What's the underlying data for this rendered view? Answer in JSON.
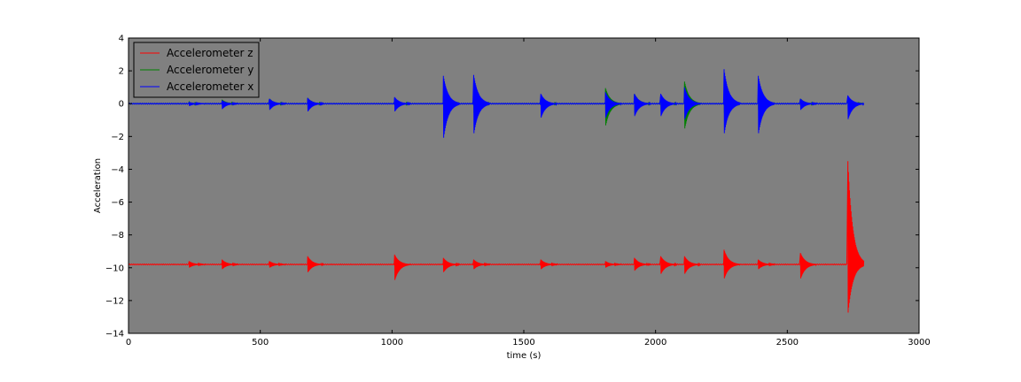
{
  "chart_data": {
    "type": "line",
    "title": "",
    "xlabel": "time (s)",
    "ylabel": "Acceleration",
    "xlim": [
      0,
      3000
    ],
    "ylim": [
      -14,
      4
    ],
    "xticks": [
      0,
      500,
      1000,
      1500,
      2000,
      2500,
      3000
    ],
    "yticks": [
      4,
      2,
      0,
      -2,
      -4,
      -6,
      -8,
      -10,
      -12,
      -14
    ],
    "grid": false,
    "legend_position": "top-left",
    "plot_background": "#808080",
    "series": [
      {
        "name": "Accelerometer z",
        "color": "#ff0000",
        "baseline": -9.8,
        "x_range": [
          0,
          2745
        ],
        "events": [
          {
            "t": 230,
            "max": -9.6,
            "min": -10.0
          },
          {
            "t": 355,
            "max": -9.5,
            "min": -10.1
          },
          {
            "t": 535,
            "max": -9.6,
            "min": -10.0
          },
          {
            "t": 680,
            "max": -9.3,
            "min": -10.3
          },
          {
            "t": 1010,
            "max": -9.2,
            "min": -10.8
          },
          {
            "t": 1195,
            "max": -9.4,
            "min": -10.3
          },
          {
            "t": 1310,
            "max": -9.5,
            "min": -10.1
          },
          {
            "t": 1565,
            "max": -9.5,
            "min": -10.1
          },
          {
            "t": 1810,
            "max": -9.6,
            "min": -10.0
          },
          {
            "t": 1920,
            "max": -9.4,
            "min": -10.2
          },
          {
            "t": 2020,
            "max": -9.3,
            "min": -10.4
          },
          {
            "t": 2110,
            "max": -9.3,
            "min": -10.4
          },
          {
            "t": 2260,
            "max": -8.9,
            "min": -10.7
          },
          {
            "t": 2390,
            "max": -9.5,
            "min": -10.1
          },
          {
            "t": 2550,
            "max": -9.1,
            "min": -10.7
          },
          {
            "t": 2730,
            "max": -3.5,
            "min": -12.9
          }
        ]
      },
      {
        "name": "Accelerometer y",
        "color": "#008000",
        "baseline": 0,
        "x_range": [
          0,
          2745
        ],
        "events": [
          {
            "t": 230,
            "max": 0.1,
            "min": -0.1
          },
          {
            "t": 355,
            "max": 0.25,
            "min": -0.2
          },
          {
            "t": 535,
            "max": 0.3,
            "min": -0.3
          },
          {
            "t": 680,
            "max": 0.35,
            "min": -0.35
          },
          {
            "t": 1010,
            "max": 0.35,
            "min": -0.35
          },
          {
            "t": 1195,
            "max": 0.5,
            "min": -0.5
          },
          {
            "t": 1310,
            "max": 0.6,
            "min": -0.6
          },
          {
            "t": 1565,
            "max": 0.5,
            "min": -0.5
          },
          {
            "t": 1810,
            "max": 0.95,
            "min": -1.4
          },
          {
            "t": 1920,
            "max": 0.6,
            "min": -0.6
          },
          {
            "t": 2020,
            "max": 0.5,
            "min": -0.5
          },
          {
            "t": 2110,
            "max": 1.35,
            "min": -1.6
          },
          {
            "t": 2260,
            "max": 0.6,
            "min": -0.6
          },
          {
            "t": 2390,
            "max": 0.4,
            "min": -0.4
          },
          {
            "t": 2550,
            "max": 0.3,
            "min": -0.3
          },
          {
            "t": 2730,
            "max": 0.2,
            "min": -0.3
          }
        ]
      },
      {
        "name": "Accelerometer x",
        "color": "#0000ff",
        "baseline": 0,
        "x_range": [
          0,
          2745
        ],
        "events": [
          {
            "t": 230,
            "max": 0.1,
            "min": -0.15
          },
          {
            "t": 355,
            "max": 0.2,
            "min": -0.35
          },
          {
            "t": 535,
            "max": 0.3,
            "min": -0.4
          },
          {
            "t": 680,
            "max": 0.35,
            "min": -0.5
          },
          {
            "t": 1010,
            "max": 0.4,
            "min": -0.5
          },
          {
            "t": 1195,
            "max": 1.7,
            "min": -2.2
          },
          {
            "t": 1310,
            "max": 1.75,
            "min": -1.9
          },
          {
            "t": 1565,
            "max": 0.6,
            "min": -0.9
          },
          {
            "t": 1810,
            "max": 0.7,
            "min": -0.9
          },
          {
            "t": 1920,
            "max": 0.6,
            "min": -0.8
          },
          {
            "t": 2020,
            "max": 0.6,
            "min": -0.8
          },
          {
            "t": 2110,
            "max": 1.0,
            "min": -1.0
          },
          {
            "t": 2260,
            "max": 2.1,
            "min": -1.9
          },
          {
            "t": 2390,
            "max": 1.7,
            "min": -1.9
          },
          {
            "t": 2550,
            "max": 0.3,
            "min": -0.4
          },
          {
            "t": 2730,
            "max": 0.5,
            "min": -1.0
          }
        ]
      }
    ]
  }
}
